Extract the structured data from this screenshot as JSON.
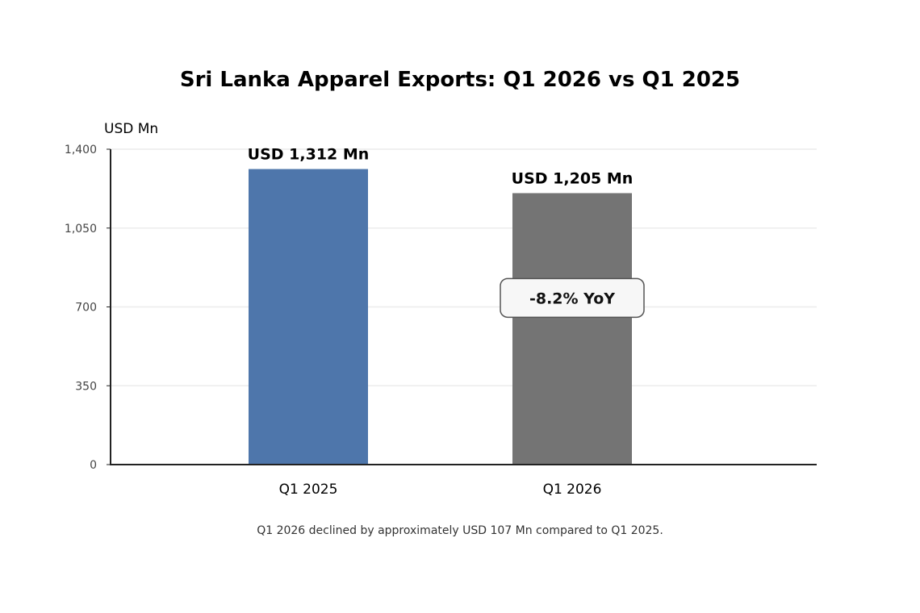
{
  "chart_data": {
    "type": "bar",
    "title": "Sri Lanka Apparel Exports: Q1 2026 vs Q1 2025",
    "ylabel": "USD Mn",
    "xlabel": "",
    "categories": [
      "Q1 2025",
      "Q1 2026"
    ],
    "values": [
      1312,
      1205
    ],
    "data_labels": [
      "USD 1,312 Mn",
      "USD 1,205 Mn"
    ],
    "colors": [
      "#4e76ab",
      "#747474"
    ],
    "ylim": [
      0,
      1400
    ],
    "yticks": [
      0,
      350,
      700,
      1050,
      1400
    ],
    "ytick_labels": [
      "0",
      "350",
      "700",
      "1,050",
      "1,400"
    ],
    "grid": true,
    "annotation": {
      "text": "-8.2% YoY",
      "category": "Q1 2026",
      "y": 740
    },
    "footnote": "Q1 2026 declined by approximately USD 107 Mn compared to Q1 2025."
  }
}
